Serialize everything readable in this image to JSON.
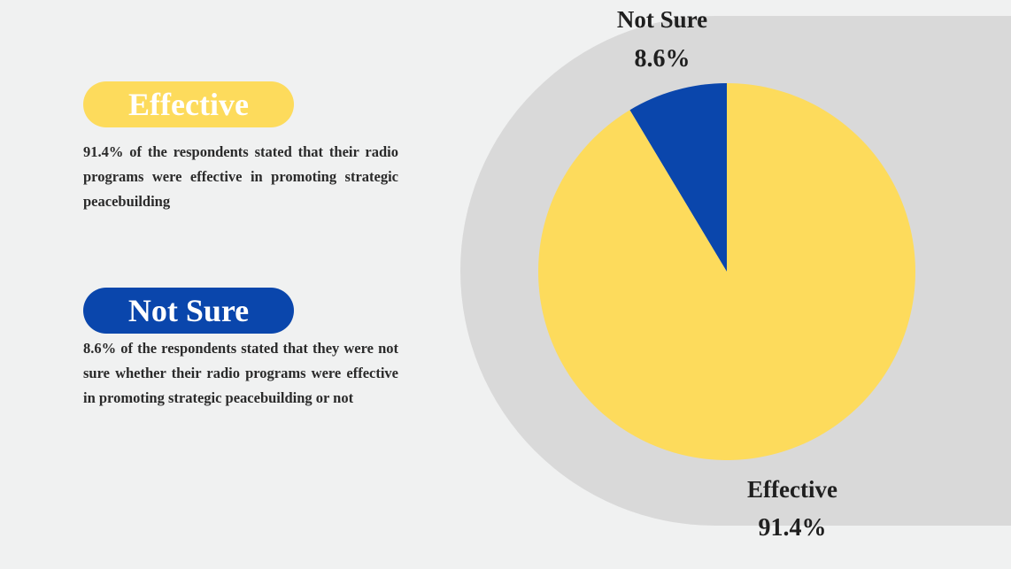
{
  "colors": {
    "background": "#f0f1f1",
    "panel": "#d9d9d9",
    "effective": "#fddb5c",
    "not_sure": "#0a46ac"
  },
  "legend": {
    "effective": {
      "label": "Effective",
      "description": "91.4% of the respondents stated that their radio programs were effective in promoting strategic peacebuilding"
    },
    "not_sure": {
      "label": "Not Sure",
      "description": "8.6% of the respondents stated that they were not sure whether their radio programs were effective in promoting strategic peacebuilding or not"
    }
  },
  "chart_data": {
    "type": "pie",
    "title": "",
    "slices": [
      {
        "label": "Not Sure",
        "value": 8.6,
        "display": "8.6%",
        "color": "#0a46ac"
      },
      {
        "label": "Effective",
        "value": 91.4,
        "display": "91.4%",
        "color": "#fddb5c"
      }
    ],
    "start": "12 o'clock",
    "direction": "counter-clockwise",
    "label_placement": "outside, Not Sure top, Effective bottom"
  }
}
